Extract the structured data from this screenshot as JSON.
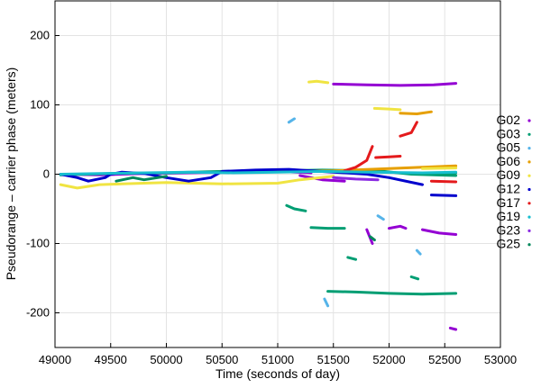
{
  "chart_data": {
    "type": "scatter",
    "title": "",
    "xlabel": "Time (seconds of day)",
    "ylabel": "Pseudorange – carrier phase (meters)",
    "xlim": [
      49000,
      53000
    ],
    "ylim": [
      -250,
      250
    ],
    "xticks": [
      49000,
      49500,
      50000,
      50500,
      51000,
      51500,
      52000,
      52500,
      53000
    ],
    "yticks": [
      -200,
      -100,
      0,
      100,
      200
    ],
    "grid": true,
    "legend_position": "right",
    "series": [
      {
        "name": "G02",
        "color": "#9400d3",
        "segments": [
          [
            [
              49050,
              0
            ],
            [
              49400,
              -1
            ],
            [
              49800,
              1
            ],
            [
              50200,
              2
            ],
            [
              50600,
              3
            ],
            [
              51000,
              4
            ],
            [
              51300,
              2
            ]
          ],
          [
            [
              51200,
              -2
            ],
            [
              51400,
              -8
            ],
            [
              51600,
              -10
            ]
          ],
          [
            [
              51500,
              130
            ],
            [
              51800,
              129
            ],
            [
              52100,
              128
            ],
            [
              52400,
              129
            ],
            [
              52600,
              131
            ]
          ],
          [
            [
              51800,
              -80
            ],
            [
              51850,
              -100
            ]
          ],
          [
            [
              52000,
              -78
            ],
            [
              52100,
              -75
            ],
            [
              52150,
              -78
            ]
          ],
          [
            [
              52300,
              -80
            ],
            [
              52450,
              -85
            ],
            [
              52600,
              -87
            ]
          ],
          [
            [
              52550,
              -222
            ],
            [
              52600,
              -224
            ]
          ]
        ]
      },
      {
        "name": "G03",
        "color": "#009e73",
        "segments": [
          [
            [
              49050,
              -1
            ],
            [
              49500,
              1
            ],
            [
              50000,
              2
            ],
            [
              50500,
              4
            ],
            [
              51000,
              5
            ],
            [
              51400,
              6
            ],
            [
              51900,
              5
            ],
            [
              52200,
              0
            ],
            [
              52600,
              -2
            ]
          ],
          [
            [
              51080,
              -45
            ],
            [
              51150,
              -50
            ],
            [
              51250,
              -53
            ]
          ],
          [
            [
              51300,
              -77
            ],
            [
              51450,
              -78
            ],
            [
              51600,
              -78
            ]
          ],
          [
            [
              51630,
              -120
            ],
            [
              51700,
              -123
            ]
          ],
          [
            [
              51450,
              -169
            ],
            [
              51700,
              -170
            ],
            [
              52000,
              -172
            ],
            [
              52300,
              -173
            ],
            [
              52600,
              -172
            ]
          ],
          [
            [
              52200,
              -148
            ],
            [
              52260,
              -151
            ]
          ],
          [
            [
              52400,
              2
            ],
            [
              52600,
              2
            ]
          ]
        ]
      },
      {
        "name": "G05",
        "color": "#56b4e9",
        "segments": [
          [
            [
              51100,
              75
            ],
            [
              51150,
              80
            ]
          ],
          [
            [
              51420,
              -180
            ],
            [
              51450,
              -190
            ]
          ],
          [
            [
              51900,
              -60
            ],
            [
              51950,
              -65
            ]
          ],
          [
            [
              52250,
              -110
            ],
            [
              52280,
              -115
            ]
          ]
        ]
      },
      {
        "name": "G06",
        "color": "#e69f00",
        "segments": [
          [
            [
              50500,
              3
            ],
            [
              51000,
              4
            ],
            [
              51500,
              5
            ],
            [
              52000,
              8
            ],
            [
              52300,
              10
            ],
            [
              52600,
              12
            ]
          ],
          [
            [
              52100,
              88
            ],
            [
              52250,
              87
            ],
            [
              52380,
              90
            ]
          ]
        ]
      },
      {
        "name": "G09",
        "color": "#f0e442",
        "segments": [
          [
            [
              49050,
              -15
            ],
            [
              49200,
              -20
            ],
            [
              49400,
              -15
            ],
            [
              49600,
              -14
            ],
            [
              49800,
              -13
            ],
            [
              50000,
              -12
            ],
            [
              50500,
              -14
            ],
            [
              51000,
              -13
            ],
            [
              51200,
              -8
            ],
            [
              51500,
              -3
            ]
          ],
          [
            [
              51280,
              133
            ],
            [
              51350,
              134
            ],
            [
              51450,
              132
            ]
          ],
          [
            [
              51870,
              95
            ],
            [
              52000,
              94
            ],
            [
              52100,
              93
            ]
          ],
          [
            [
              52300,
              8
            ],
            [
              52600,
              9
            ]
          ]
        ]
      },
      {
        "name": "G12",
        "color": "#0000cd",
        "segments": [
          [
            [
              49050,
              0
            ],
            [
              49200,
              -5
            ],
            [
              49300,
              -10
            ],
            [
              49450,
              -5
            ],
            [
              49500,
              0
            ],
            [
              49600,
              3
            ],
            [
              49800,
              1
            ],
            [
              50000,
              -5
            ],
            [
              50200,
              -10
            ],
            [
              50400,
              -5
            ],
            [
              50500,
              4
            ],
            [
              50800,
              6
            ],
            [
              51100,
              7
            ],
            [
              51300,
              5
            ],
            [
              51500,
              3
            ],
            [
              51800,
              0
            ],
            [
              52000,
              -5
            ],
            [
              52300,
              -15
            ]
          ],
          [
            [
              52380,
              -30
            ],
            [
              52600,
              -31
            ]
          ]
        ]
      },
      {
        "name": "G17",
        "color": "#e41a1c",
        "segments": [
          [
            [
              51600,
              5
            ],
            [
              51700,
              10
            ],
            [
              51800,
              20
            ],
            [
              51850,
              40
            ]
          ],
          [
            [
              51880,
              24
            ],
            [
              52000,
              25
            ],
            [
              52100,
              26
            ]
          ],
          [
            [
              52100,
              55
            ],
            [
              52200,
              60
            ],
            [
              52250,
              75
            ]
          ],
          [
            [
              52380,
              -10
            ],
            [
              52600,
              -11
            ]
          ]
        ]
      },
      {
        "name": "G19",
        "color": "#17becf",
        "segments": [
          [
            [
              49050,
              0
            ],
            [
              49400,
              1
            ],
            [
              49800,
              2
            ],
            [
              50200,
              3
            ],
            [
              50600,
              2
            ],
            [
              51000,
              3
            ],
            [
              51400,
              4
            ],
            [
              51800,
              3
            ],
            [
              52300,
              2
            ],
            [
              52600,
              3
            ]
          ]
        ]
      },
      {
        "name": "G23",
        "color": "#8a2be2",
        "segments": [
          [
            [
              51500,
              -5
            ],
            [
              51700,
              -7
            ],
            [
              51900,
              -8
            ]
          ]
        ]
      },
      {
        "name": "G25",
        "color": "#00875a",
        "segments": [
          [
            [
              49550,
              -10
            ],
            [
              49700,
              -5
            ],
            [
              49800,
              -8
            ],
            [
              50000,
              -3
            ]
          ],
          [
            [
              51830,
              -90
            ],
            [
              51870,
              -95
            ]
          ]
        ]
      }
    ]
  }
}
